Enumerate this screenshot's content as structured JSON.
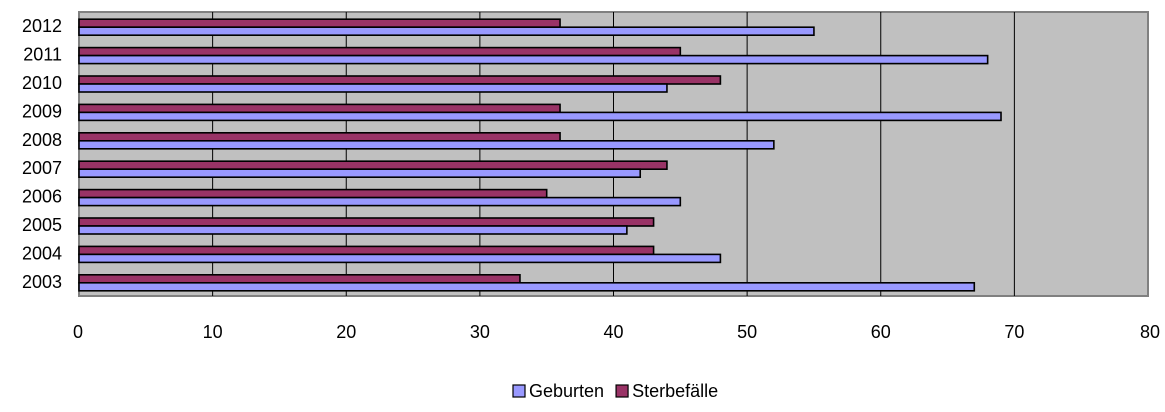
{
  "chart_data": {
    "type": "bar",
    "orientation": "horizontal",
    "categories": [
      "2012",
      "2011",
      "2010",
      "2009",
      "2008",
      "2007",
      "2006",
      "2005",
      "2004",
      "2003"
    ],
    "series": [
      {
        "name": "Sterbefälle",
        "color": "#993366",
        "values": [
          36,
          45,
          48,
          36,
          36,
          44,
          35,
          43,
          43,
          33
        ]
      },
      {
        "name": "Geburten",
        "color": "#9999FF",
        "values": [
          55,
          68,
          44,
          69,
          52,
          42,
          45,
          41,
          48,
          67
        ]
      }
    ],
    "legend_order": [
      "Geburten",
      "Sterbefälle"
    ],
    "xlim": [
      0,
      80
    ],
    "x_ticks": [
      0,
      10,
      20,
      30,
      40,
      50,
      60,
      70,
      80
    ],
    "title": "",
    "xlabel": "",
    "ylabel": "",
    "grid": true,
    "legend_position": "bottom",
    "plot_background": "#C0C0C0"
  }
}
